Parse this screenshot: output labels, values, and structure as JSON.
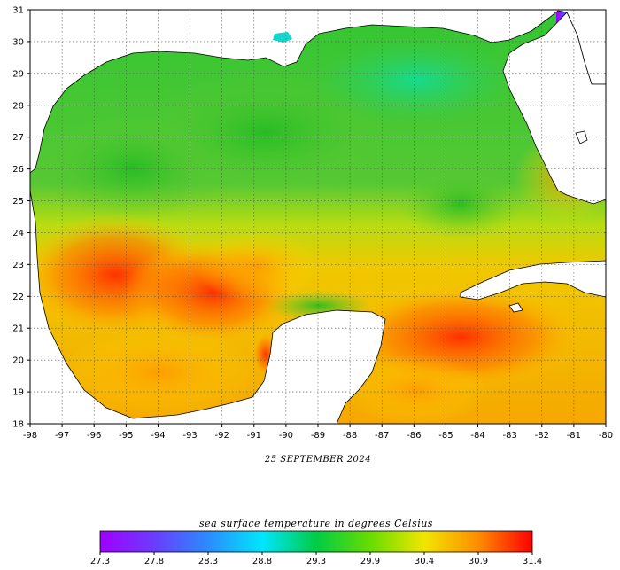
{
  "map": {
    "date_label": "25 SEPTEMBER 2024",
    "lon_ticks": [
      "-98",
      "-97",
      "-96",
      "-95",
      "-94",
      "-93",
      "-92",
      "-91",
      "-90",
      "-89",
      "-88",
      "-87",
      "-86",
      "-85",
      "-84",
      "-83",
      "-82",
      "-81",
      "-80"
    ],
    "lat_ticks": [
      "18",
      "19",
      "20",
      "21",
      "22",
      "23",
      "24",
      "25",
      "26",
      "27",
      "28",
      "29",
      "30",
      "31"
    ],
    "lon_range": [
      -98,
      -80
    ],
    "lat_range": [
      18,
      31
    ],
    "grid": "dotted"
  },
  "colorbar": {
    "title": "sea surface temperature in degrees Celsius",
    "labels": [
      "27.3",
      "27.8",
      "28.3",
      "28.8",
      "29.3",
      "29.9",
      "30.4",
      "30.9",
      "31.4"
    ],
    "colors": [
      "#a000ff",
      "#6a3cff",
      "#2a8cff",
      "#00e6ff",
      "#00cc44",
      "#66dd00",
      "#f0e600",
      "#ff8c00",
      "#ff0000"
    ]
  },
  "colors": {
    "land": "#ffffff",
    "coastline": "#000000",
    "cool_water": "#33cc33",
    "warm_water": "#ff6a00"
  }
}
